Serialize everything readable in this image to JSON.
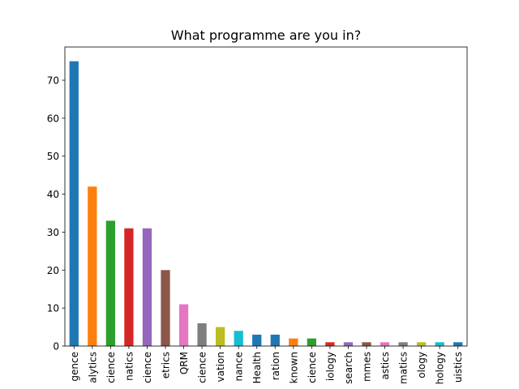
{
  "chart_data": {
    "type": "bar",
    "title": "What programme are you in?",
    "xlabel": "",
    "ylabel": "",
    "ylim": [
      0,
      78.75
    ],
    "yticks": [
      0,
      10,
      20,
      30,
      40,
      50,
      60,
      70
    ],
    "grid": false,
    "legend": "none",
    "tick_label_rotation": 90,
    "categories": [
      "gence",
      "alytics",
      "cience",
      "natics",
      "cience",
      "etrics",
      "QRM",
      "cience",
      "vation",
      "nance",
      "Health",
      "ration",
      "known",
      "cience",
      "iology",
      "search",
      "mmes",
      "astics",
      "matics",
      "ology",
      "hology",
      "uistics"
    ],
    "values": [
      75,
      42,
      33,
      31,
      31,
      20,
      11,
      6,
      5,
      4,
      3,
      3,
      2,
      2,
      1,
      1,
      1,
      1,
      1,
      1,
      1,
      1
    ],
    "colors": [
      "#1f77b4",
      "#ff7f0e",
      "#2ca02c",
      "#d62728",
      "#9467bd",
      "#8c564b",
      "#e377c2",
      "#7f7f7f",
      "#bcbd22",
      "#17becf",
      "#1f77b4",
      "#1f77b4",
      "#ff7f0e",
      "#2ca02c",
      "#d62728",
      "#9467bd",
      "#8c564b",
      "#e377c2",
      "#7f7f7f",
      "#bcbd22",
      "#17becf",
      "#1f77b4"
    ]
  }
}
